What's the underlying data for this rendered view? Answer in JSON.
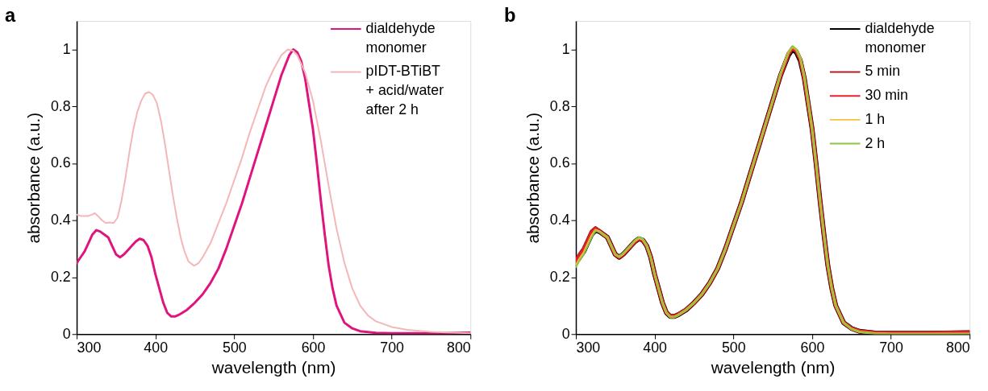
{
  "chart_data": [
    {
      "type": "line",
      "title": "a",
      "xlabel": "wavelength (nm)",
      "ylabel": "absorbance (a.u.)",
      "xlim": [
        300,
        800
      ],
      "xticks": [
        300,
        400,
        500,
        600,
        700,
        800
      ],
      "ylim": [
        0,
        1.1
      ],
      "yticks": [
        0,
        0.2,
        0.4,
        0.6,
        0.8,
        1
      ],
      "grid": false,
      "legend": "top right",
      "marker": "none",
      "line_style": "solid",
      "series": [
        {
          "name": "dialdehyde\nmonomer",
          "color": "#e0147f",
          "x": [
            300,
            305,
            310,
            315,
            320,
            325,
            330,
            335,
            340,
            345,
            350,
            355,
            360,
            365,
            370,
            375,
            380,
            385,
            390,
            395,
            400,
            405,
            410,
            415,
            420,
            425,
            430,
            440,
            450,
            460,
            470,
            480,
            490,
            500,
            510,
            520,
            530,
            540,
            550,
            560,
            570,
            575,
            580,
            585,
            590,
            595,
            600,
            605,
            610,
            615,
            620,
            625,
            630,
            640,
            650,
            660,
            680,
            700,
            750,
            800
          ],
          "values": [
            0.25,
            0.27,
            0.29,
            0.32,
            0.35,
            0.365,
            0.36,
            0.35,
            0.34,
            0.31,
            0.28,
            0.27,
            0.28,
            0.295,
            0.31,
            0.325,
            0.335,
            0.33,
            0.31,
            0.27,
            0.21,
            0.16,
            0.11,
            0.075,
            0.062,
            0.062,
            0.068,
            0.085,
            0.11,
            0.14,
            0.18,
            0.23,
            0.3,
            0.38,
            0.46,
            0.55,
            0.64,
            0.73,
            0.82,
            0.91,
            0.98,
            1.0,
            0.99,
            0.96,
            0.9,
            0.81,
            0.72,
            0.6,
            0.47,
            0.35,
            0.24,
            0.16,
            0.1,
            0.04,
            0.02,
            0.01,
            0.004,
            0.003,
            0.003,
            0.005
          ]
        },
        {
          "name": "pIDT-BTiBT\n+ acid/water\nafter 2 h",
          "color": "#f4b6b6",
          "x": [
            300,
            305,
            310,
            315,
            320,
            323,
            327,
            332,
            337,
            342,
            347,
            352,
            357,
            362,
            367,
            372,
            377,
            382,
            387,
            392,
            397,
            402,
            407,
            412,
            417,
            422,
            427,
            432,
            437,
            442,
            449,
            455,
            460,
            470,
            480,
            490,
            500,
            510,
            520,
            530,
            540,
            550,
            560,
            568,
            575,
            580,
            590,
            600,
            610,
            620,
            630,
            640,
            650,
            660,
            670,
            680,
            700,
            720,
            750,
            800
          ],
          "values": [
            0.42,
            0.415,
            0.415,
            0.415,
            0.42,
            0.425,
            0.415,
            0.4,
            0.39,
            0.392,
            0.39,
            0.41,
            0.47,
            0.55,
            0.64,
            0.72,
            0.78,
            0.82,
            0.845,
            0.85,
            0.84,
            0.81,
            0.75,
            0.67,
            0.58,
            0.49,
            0.41,
            0.34,
            0.29,
            0.255,
            0.24,
            0.25,
            0.27,
            0.32,
            0.39,
            0.46,
            0.54,
            0.62,
            0.71,
            0.79,
            0.87,
            0.93,
            0.98,
            1.0,
            0.995,
            0.98,
            0.92,
            0.82,
            0.68,
            0.52,
            0.37,
            0.25,
            0.16,
            0.1,
            0.065,
            0.045,
            0.025,
            0.015,
            0.008,
            0.003
          ]
        }
      ]
    },
    {
      "type": "line",
      "title": "b",
      "xlabel": "wavelength (nm)",
      "ylabel": "absorbance (a.u.)",
      "xlim": [
        300,
        800
      ],
      "xticks": [
        300,
        400,
        500,
        600,
        700,
        800
      ],
      "ylim": [
        0,
        1.1
      ],
      "yticks": [
        0,
        0.2,
        0.4,
        0.6,
        0.8,
        1
      ],
      "grid": false,
      "legend": "top right",
      "marker": "none",
      "line_style": "solid",
      "x": [
        300,
        305,
        310,
        315,
        320,
        325,
        330,
        335,
        340,
        345,
        350,
        355,
        360,
        365,
        370,
        375,
        380,
        385,
        390,
        395,
        400,
        405,
        410,
        415,
        420,
        425,
        430,
        440,
        450,
        460,
        470,
        480,
        490,
        500,
        510,
        520,
        530,
        540,
        550,
        560,
        570,
        575,
        580,
        585,
        590,
        595,
        600,
        605,
        610,
        615,
        620,
        625,
        630,
        640,
        650,
        660,
        680,
        700,
        750,
        800
      ],
      "series": [
        {
          "name": "dialdehyde\nmonomer",
          "color": "#000000",
          "values": [
            0.25,
            0.27,
            0.29,
            0.32,
            0.35,
            0.365,
            0.36,
            0.35,
            0.34,
            0.31,
            0.28,
            0.27,
            0.28,
            0.295,
            0.31,
            0.325,
            0.335,
            0.33,
            0.31,
            0.27,
            0.21,
            0.16,
            0.11,
            0.075,
            0.062,
            0.062,
            0.068,
            0.085,
            0.11,
            0.14,
            0.18,
            0.23,
            0.3,
            0.38,
            0.46,
            0.55,
            0.64,
            0.73,
            0.82,
            0.91,
            0.98,
            1.0,
            0.99,
            0.96,
            0.9,
            0.81,
            0.72,
            0.6,
            0.47,
            0.35,
            0.24,
            0.16,
            0.1,
            0.04,
            0.02,
            0.01,
            0.004,
            0.003,
            0.003,
            0.005
          ]
        },
        {
          "name": "5 min",
          "color": "#b01f24",
          "values": [
            0.26,
            0.28,
            0.3,
            0.33,
            0.36,
            0.372,
            0.362,
            0.35,
            0.34,
            0.31,
            0.28,
            0.27,
            0.28,
            0.295,
            0.31,
            0.325,
            0.335,
            0.33,
            0.31,
            0.27,
            0.21,
            0.16,
            0.11,
            0.075,
            0.063,
            0.063,
            0.069,
            0.086,
            0.11,
            0.14,
            0.18,
            0.23,
            0.3,
            0.38,
            0.46,
            0.55,
            0.64,
            0.73,
            0.82,
            0.91,
            0.985,
            1.005,
            0.995,
            0.965,
            0.9,
            0.81,
            0.72,
            0.6,
            0.47,
            0.35,
            0.24,
            0.16,
            0.1,
            0.04,
            0.02,
            0.01,
            0.005,
            0.004,
            0.004,
            0.006
          ]
        },
        {
          "name": "30 min",
          "color": "#e8202a",
          "values": [
            0.255,
            0.275,
            0.295,
            0.325,
            0.355,
            0.37,
            0.36,
            0.35,
            0.34,
            0.31,
            0.28,
            0.27,
            0.28,
            0.295,
            0.31,
            0.325,
            0.335,
            0.33,
            0.31,
            0.27,
            0.21,
            0.16,
            0.11,
            0.075,
            0.062,
            0.062,
            0.068,
            0.085,
            0.11,
            0.14,
            0.18,
            0.23,
            0.3,
            0.38,
            0.46,
            0.55,
            0.64,
            0.73,
            0.82,
            0.91,
            0.985,
            1.005,
            0.995,
            0.965,
            0.9,
            0.81,
            0.72,
            0.6,
            0.47,
            0.35,
            0.24,
            0.16,
            0.1,
            0.04,
            0.02,
            0.01,
            0.004,
            0.003,
            0.003,
            0.005
          ]
        },
        {
          "name": "1 h",
          "color": "#f5c242",
          "values": [
            0.24,
            0.265,
            0.285,
            0.315,
            0.345,
            0.365,
            0.36,
            0.35,
            0.34,
            0.31,
            0.28,
            0.272,
            0.282,
            0.297,
            0.312,
            0.328,
            0.338,
            0.333,
            0.31,
            0.27,
            0.21,
            0.16,
            0.11,
            0.075,
            0.06,
            0.06,
            0.067,
            0.085,
            0.11,
            0.14,
            0.18,
            0.23,
            0.3,
            0.38,
            0.46,
            0.55,
            0.64,
            0.73,
            0.82,
            0.915,
            0.99,
            1.01,
            1.0,
            0.97,
            0.905,
            0.815,
            0.72,
            0.6,
            0.47,
            0.35,
            0.24,
            0.16,
            0.1,
            0.04,
            0.018,
            0.008,
            0.002,
            0.001,
            0.001,
            0.001
          ]
        },
        {
          "name": "2 h",
          "color": "#8cc63f",
          "values": [
            0.235,
            0.26,
            0.28,
            0.31,
            0.34,
            0.363,
            0.358,
            0.35,
            0.34,
            0.31,
            0.28,
            0.273,
            0.283,
            0.298,
            0.313,
            0.33,
            0.34,
            0.335,
            0.31,
            0.27,
            0.21,
            0.16,
            0.11,
            0.075,
            0.06,
            0.06,
            0.067,
            0.085,
            0.11,
            0.14,
            0.18,
            0.23,
            0.3,
            0.38,
            0.46,
            0.55,
            0.64,
            0.73,
            0.82,
            0.915,
            0.99,
            1.012,
            1.0,
            0.97,
            0.905,
            0.815,
            0.72,
            0.6,
            0.47,
            0.35,
            0.24,
            0.16,
            0.1,
            0.04,
            0.018,
            0.008,
            0.002,
            0.001,
            0.001,
            0.001
          ]
        }
      ]
    }
  ]
}
